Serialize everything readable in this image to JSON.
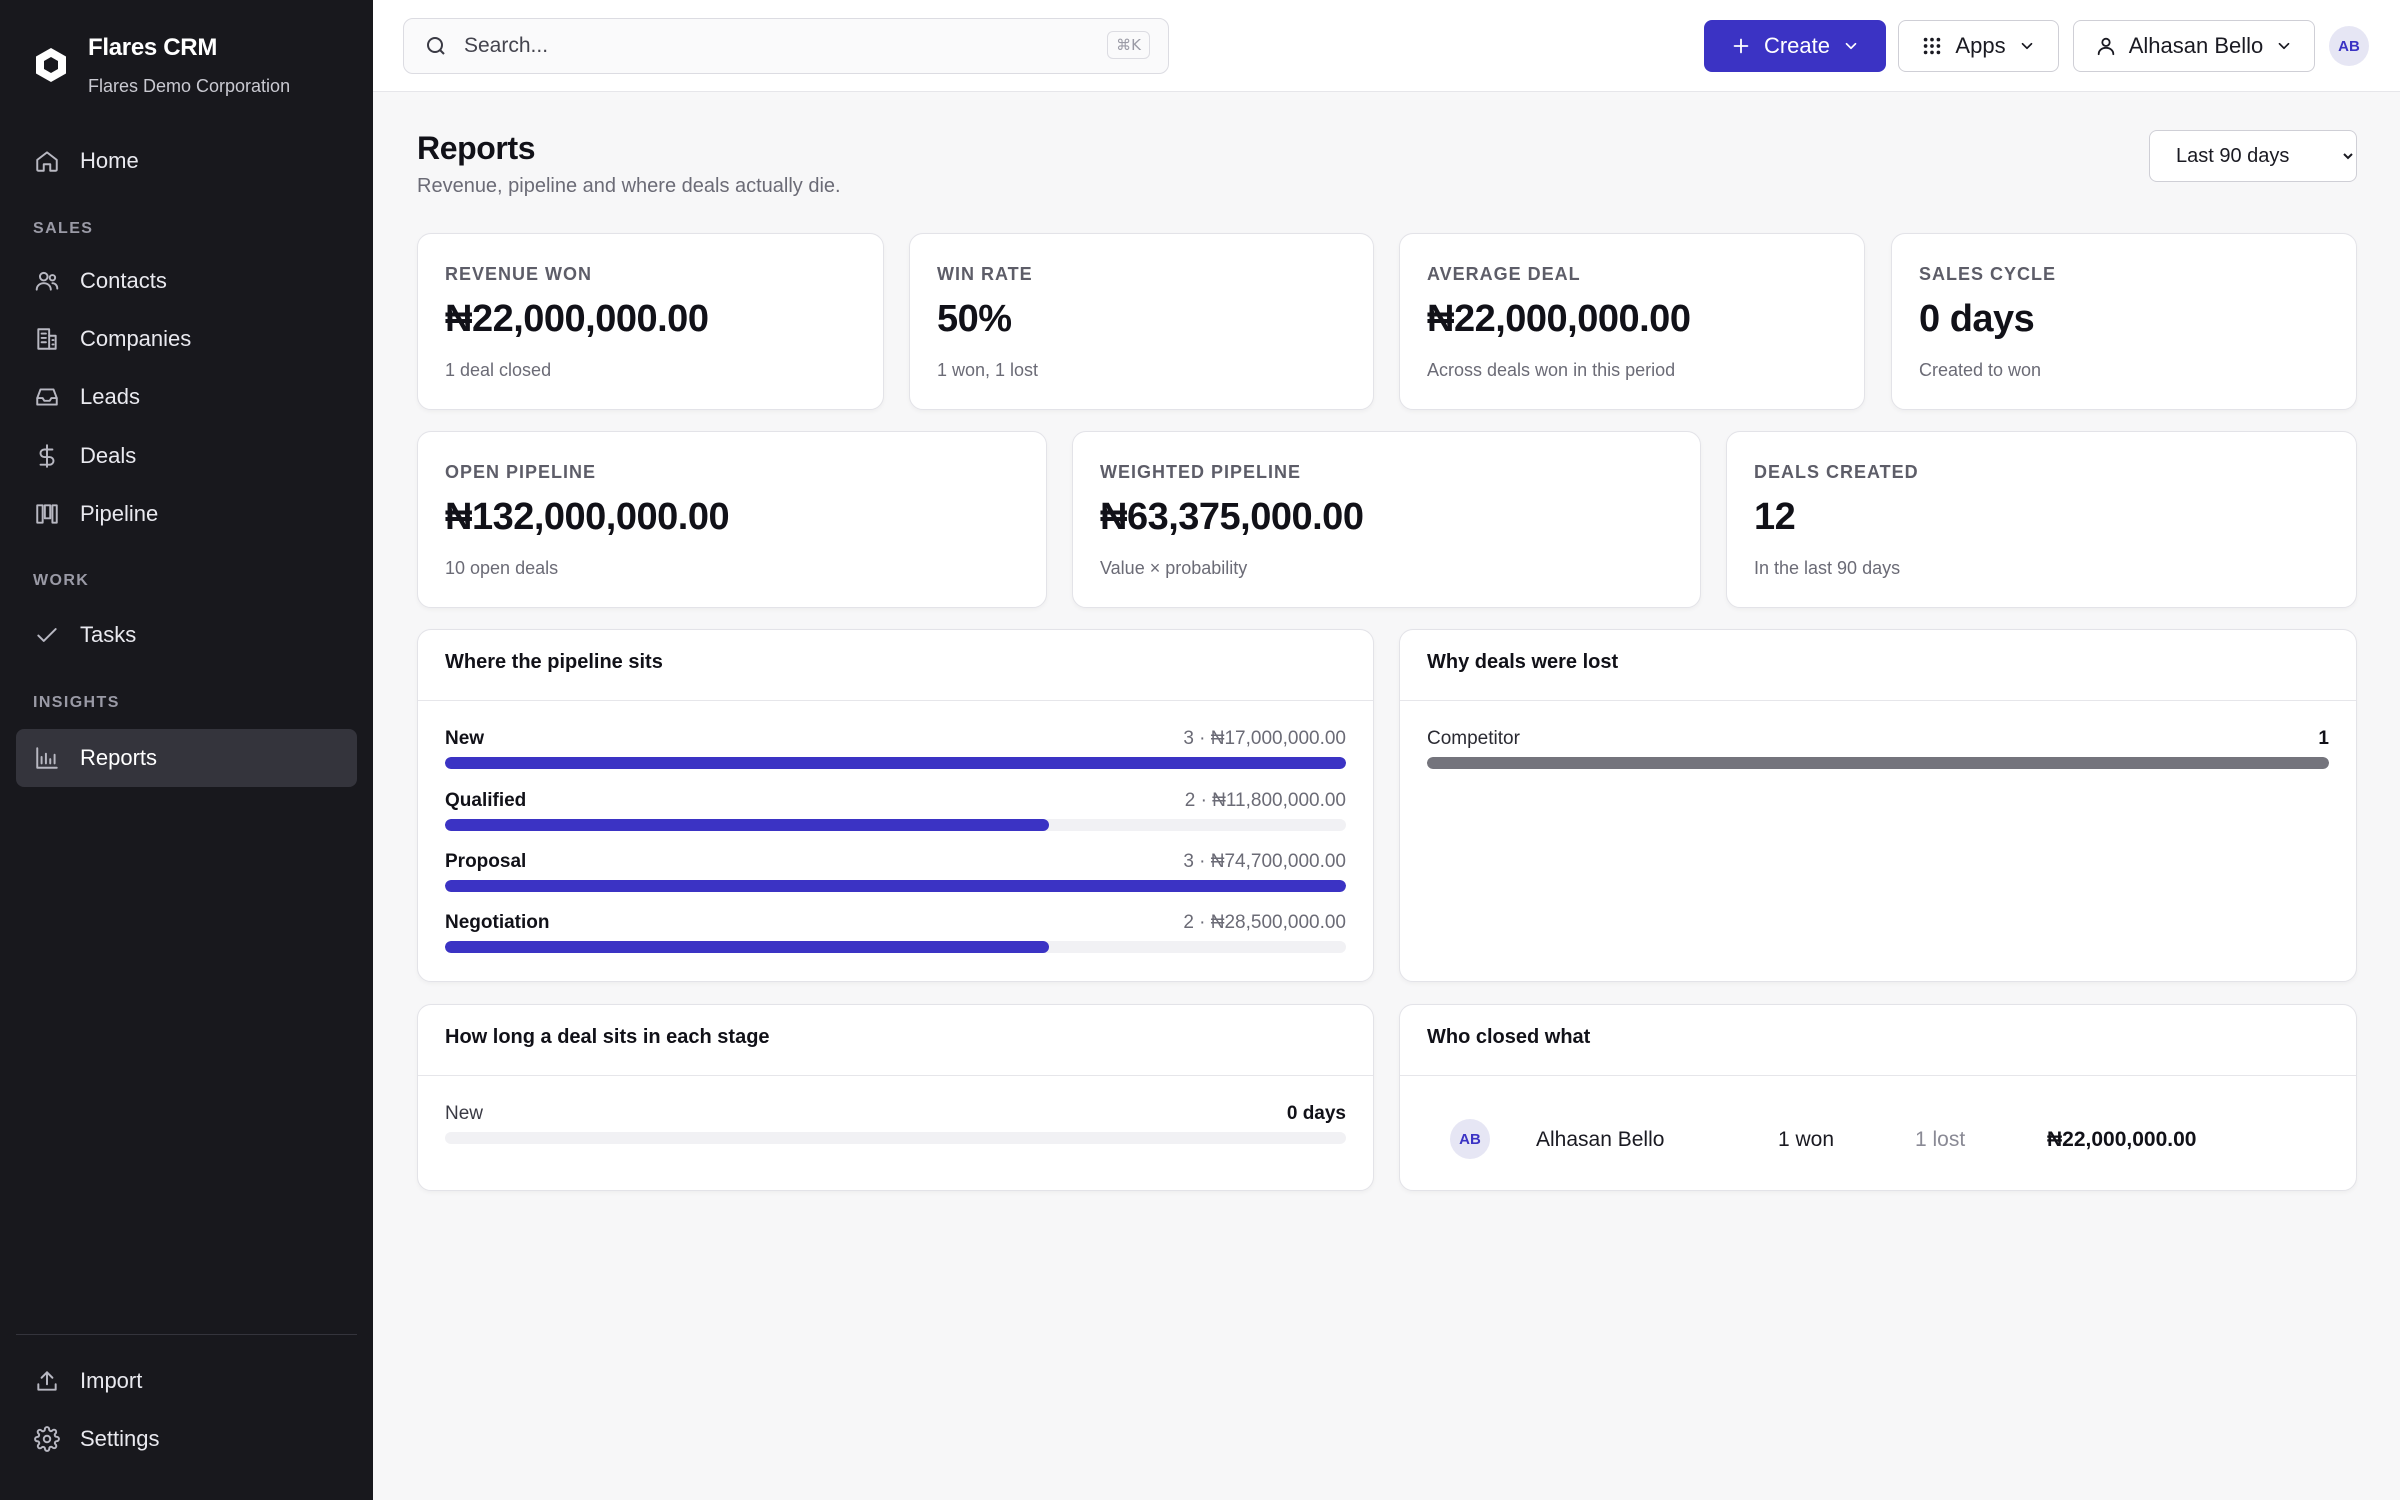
{
  "brand": {
    "name": "Flares CRM",
    "org": "Flares Demo Corporation"
  },
  "sidebar": {
    "items": [
      {
        "label": "Home",
        "icon": "home-icon"
      },
      {
        "label": "Contacts",
        "icon": "users-icon"
      },
      {
        "label": "Companies",
        "icon": "building-icon"
      },
      {
        "label": "Leads",
        "icon": "inbox-icon"
      },
      {
        "label": "Deals",
        "icon": "dollar-icon"
      },
      {
        "label": "Pipeline",
        "icon": "kanban-icon"
      },
      {
        "label": "Tasks",
        "icon": "check-icon"
      },
      {
        "label": "Reports",
        "icon": "bar-chart-icon",
        "active": true
      },
      {
        "label": "Import",
        "icon": "upload-icon"
      },
      {
        "label": "Settings",
        "icon": "gear-icon"
      }
    ],
    "sections": {
      "sales": "SALES",
      "work": "WORK",
      "insights": "INSIGHTS"
    }
  },
  "topbar": {
    "search_placeholder": "Search...",
    "search_shortcut": "⌘K",
    "create_label": "Create",
    "apps_label": "Apps",
    "user_label": "Alhasan Bello",
    "avatar_initials": "AB"
  },
  "page": {
    "title": "Reports",
    "subtitle": "Revenue, pipeline and where deals actually die.",
    "range_selected": "Last 90 days"
  },
  "kpis": [
    {
      "label": "REVENUE WON",
      "value": "₦22,000,000.00",
      "sub": "1 deal closed"
    },
    {
      "label": "WIN RATE",
      "value": "50%",
      "sub": "1 won, 1 lost"
    },
    {
      "label": "AVERAGE DEAL",
      "value": "₦22,000,000.00",
      "sub": "Across deals won in this period"
    },
    {
      "label": "SALES CYCLE",
      "value": "0 days",
      "sub": "Created to won"
    },
    {
      "label": "OPEN PIPELINE",
      "value": "₦132,000,000.00",
      "sub": "10 open deals"
    },
    {
      "label": "WEIGHTED PIPELINE",
      "value": "₦63,375,000.00",
      "sub": "Value × probability"
    },
    {
      "label": "DEALS CREATED",
      "value": "12",
      "sub": "In the last 90 days"
    }
  ],
  "pipeline": {
    "title": "Where the pipeline sits",
    "stages": [
      {
        "name": "New",
        "summary": "3 · ₦17,000,000.00",
        "fill": 1.0
      },
      {
        "name": "Qualified",
        "summary": "2 · ₦11,800,000.00",
        "fill": 0.67
      },
      {
        "name": "Proposal",
        "summary": "3 · ₦74,700,000.00",
        "fill": 1.0
      },
      {
        "name": "Negotiation",
        "summary": "2 · ₦28,500,000.00",
        "fill": 0.67
      }
    ]
  },
  "lost": {
    "title": "Why deals were lost",
    "reasons": [
      {
        "name": "Competitor",
        "count": "1",
        "fill": 1.0
      }
    ]
  },
  "durations": {
    "title": "How long a deal sits in each stage",
    "rows": [
      {
        "name": "New",
        "value": "0 days",
        "fill": 0
      }
    ]
  },
  "closers": {
    "title": "Who closed what",
    "rows": [
      {
        "initials": "AB",
        "name": "Alhasan Bello",
        "won": "1 won",
        "lost": "1 lost",
        "amount": "₦22,000,000.00"
      }
    ]
  }
}
